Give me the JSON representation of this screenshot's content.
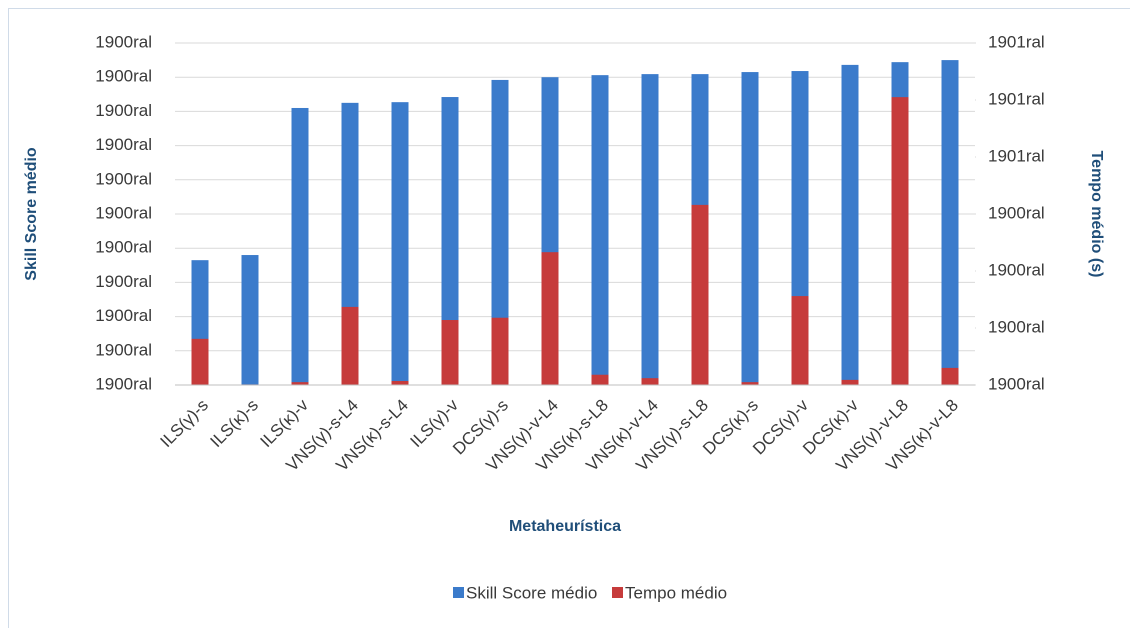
{
  "chart_data": {
    "type": "bar",
    "x_label": "Metaheurística",
    "y_label": "Skill Score médio",
    "y2_label": "Tempo médio (s)",
    "categories": [
      "ILS(γ)-s",
      "ILS(κ)-s",
      "ILS(κ)-v",
      "VNS(γ)-s-L4",
      "VNS(κ)-s-L4",
      "ILS(γ)-v",
      "DCS(γ)-s",
      "VNS(γ)-v-L4",
      "VNS(κ)-s-L8",
      "VNS(κ)-v-L4",
      "VNS(γ)-s-L8",
      "DCS(κ)-s",
      "DCS(γ)-v",
      "DCS(κ)-v",
      "VNS(γ)-v-L8",
      "VNS(κ)-v-L8"
    ],
    "series": [
      {
        "name": "Skill Score médio",
        "color": "#3b7bcb",
        "axis": "y",
        "values": [
          3.65,
          3.8,
          8.1,
          8.25,
          8.27,
          8.42,
          8.92,
          9.0,
          9.06,
          9.09,
          9.09,
          9.15,
          9.18,
          9.36,
          9.44,
          9.5
        ]
      },
      {
        "name": "Tempo médio",
        "color": "#c63b3b",
        "axis": "y2",
        "values": [
          0.81,
          0.01,
          0.05,
          1.37,
          0.07,
          1.14,
          1.18,
          2.33,
          0.18,
          0.12,
          3.16,
          0.05,
          1.56,
          0.09,
          5.05,
          0.3
        ]
      }
    ],
    "ylim": [
      0,
      10
    ],
    "yticks": [
      {
        "value": 0,
        "label": "1900ral"
      },
      {
        "value": 1,
        "label": "1900ral"
      },
      {
        "value": 2,
        "label": "1900ral"
      },
      {
        "value": 3,
        "label": "1900ral"
      },
      {
        "value": 4,
        "label": "1900ral"
      },
      {
        "value": 5,
        "label": "1900ral"
      },
      {
        "value": 6,
        "label": "1900ral"
      },
      {
        "value": 7,
        "label": "1900ral"
      },
      {
        "value": 8,
        "label": "1900ral"
      },
      {
        "value": 9,
        "label": "1900ral"
      },
      {
        "value": 10,
        "label": "1900ral"
      }
    ],
    "y2lim": [
      0,
      6
    ],
    "y2ticks": [
      {
        "value": 0,
        "label": "1900ral"
      },
      {
        "value": 1,
        "label": "1900ral"
      },
      {
        "value": 2,
        "label": "1900ral"
      },
      {
        "value": 3,
        "label": "1900ral"
      },
      {
        "value": 4,
        "label": "1901ral"
      },
      {
        "value": 5,
        "label": "1901ral"
      },
      {
        "value": 6,
        "label": "1901ral"
      }
    ],
    "grid": true,
    "legend": "bottom"
  }
}
